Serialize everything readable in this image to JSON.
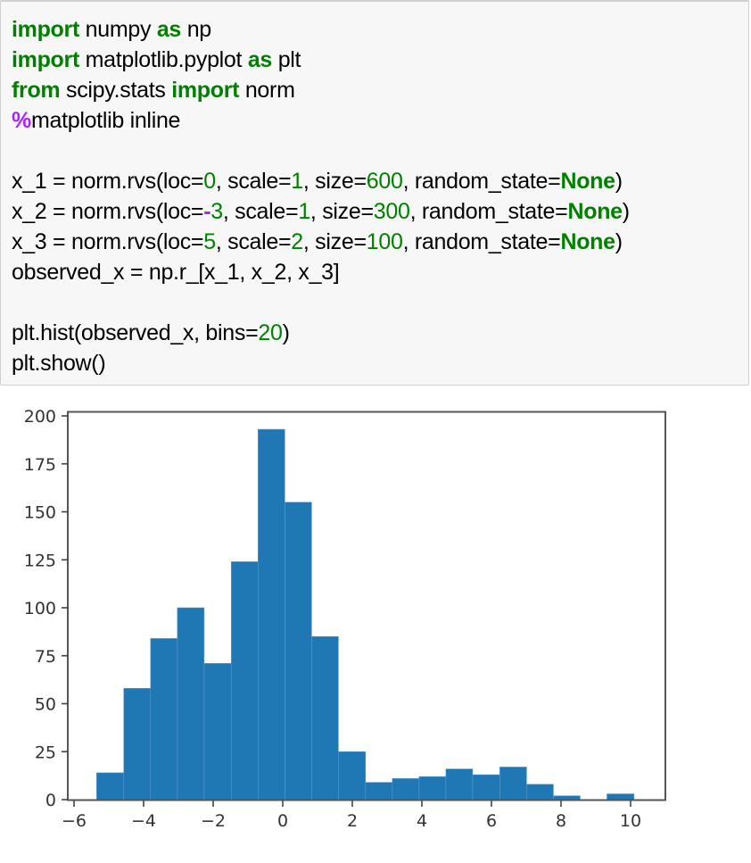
{
  "code_cell": {
    "lines": [
      [
        {
          "t": "import",
          "c": "kw"
        },
        {
          "t": " numpy ",
          "c": ""
        },
        {
          "t": "as",
          "c": "kw"
        },
        {
          "t": " np",
          "c": ""
        }
      ],
      [
        {
          "t": "import",
          "c": "kw"
        },
        {
          "t": " matplotlib.pyplot ",
          "c": ""
        },
        {
          "t": "as",
          "c": "kw"
        },
        {
          "t": " plt",
          "c": ""
        }
      ],
      [
        {
          "t": "from",
          "c": "kw"
        },
        {
          "t": " scipy.stats ",
          "c": ""
        },
        {
          "t": "import",
          "c": "kw"
        },
        {
          "t": " norm",
          "c": ""
        }
      ],
      [
        {
          "t": "%",
          "c": "mag"
        },
        {
          "t": "matplotlib inline",
          "c": ""
        }
      ],
      [],
      [
        {
          "t": "x_1 = norm.rvs(loc=",
          "c": ""
        },
        {
          "t": "0",
          "c": "num"
        },
        {
          "t": ", scale=",
          "c": ""
        },
        {
          "t": "1",
          "c": "num"
        },
        {
          "t": ", size=",
          "c": ""
        },
        {
          "t": "600",
          "c": "num"
        },
        {
          "t": ", random_state=",
          "c": ""
        },
        {
          "t": "None",
          "c": "kw"
        },
        {
          "t": ")",
          "c": ""
        }
      ],
      [
        {
          "t": "x_2 = norm.rvs(loc=",
          "c": ""
        },
        {
          "t": "-",
          "c": "op-purple"
        },
        {
          "t": "3",
          "c": "num"
        },
        {
          "t": ", scale=",
          "c": ""
        },
        {
          "t": "1",
          "c": "num"
        },
        {
          "t": ", size=",
          "c": ""
        },
        {
          "t": "300",
          "c": "num"
        },
        {
          "t": ", random_state=",
          "c": ""
        },
        {
          "t": "None",
          "c": "kw"
        },
        {
          "t": ")",
          "c": ""
        }
      ],
      [
        {
          "t": "x_3 = norm.rvs(loc=",
          "c": ""
        },
        {
          "t": "5",
          "c": "num"
        },
        {
          "t": ", scale=",
          "c": ""
        },
        {
          "t": "2",
          "c": "num"
        },
        {
          "t": ", size=",
          "c": ""
        },
        {
          "t": "100",
          "c": "num"
        },
        {
          "t": ", random_state=",
          "c": ""
        },
        {
          "t": "None",
          "c": "kw"
        },
        {
          "t": ")",
          "c": ""
        }
      ],
      [
        {
          "t": "observed_x = np.r_[x_1, x_2, x_3]",
          "c": ""
        }
      ],
      [],
      [
        {
          "t": "plt.hist(observed_x, bins=",
          "c": ""
        },
        {
          "t": "20",
          "c": "num"
        },
        {
          "t": ")",
          "c": ""
        }
      ],
      [
        {
          "t": "plt.show()",
          "c": ""
        }
      ]
    ]
  },
  "colors": {
    "keyword": "#008000",
    "number": "#008000",
    "magic": "#aa22ff",
    "bar": "#1f77b4",
    "cell_bg": "#f7f7f7",
    "cell_border": "#cfcfcf"
  },
  "chart_data": {
    "type": "bar",
    "subtype": "histogram",
    "title": "",
    "xlabel": "",
    "ylabel": "",
    "bins": 20,
    "bin_edges": [
      -5.35,
      -4.57,
      -3.8,
      -3.03,
      -2.26,
      -1.48,
      -0.71,
      0.06,
      0.83,
      1.6,
      2.38,
      3.15,
      3.92,
      4.69,
      5.46,
      6.24,
      7.01,
      7.78,
      8.55,
      9.32,
      10.1
    ],
    "values": [
      14,
      58,
      84,
      100,
      71,
      124,
      193,
      155,
      85,
      25,
      9,
      11,
      12,
      16,
      13,
      17,
      8,
      2,
      0,
      3
    ],
    "xlim": [
      -6.1,
      10.9
    ],
    "ylim": [
      0,
      202
    ],
    "xticks": [
      -6,
      -4,
      -2,
      0,
      2,
      4,
      6,
      8,
      10
    ],
    "xtick_labels": [
      "−6",
      "−4",
      "−2",
      "0",
      "2",
      "4",
      "6",
      "8",
      "10"
    ],
    "yticks": [
      0,
      25,
      50,
      75,
      100,
      125,
      150,
      175,
      200
    ],
    "ytick_labels": [
      "0",
      "25",
      "50",
      "75",
      "100",
      "125",
      "150",
      "175",
      "200"
    ],
    "grid": false,
    "legend": null,
    "color": "#1f77b4"
  }
}
